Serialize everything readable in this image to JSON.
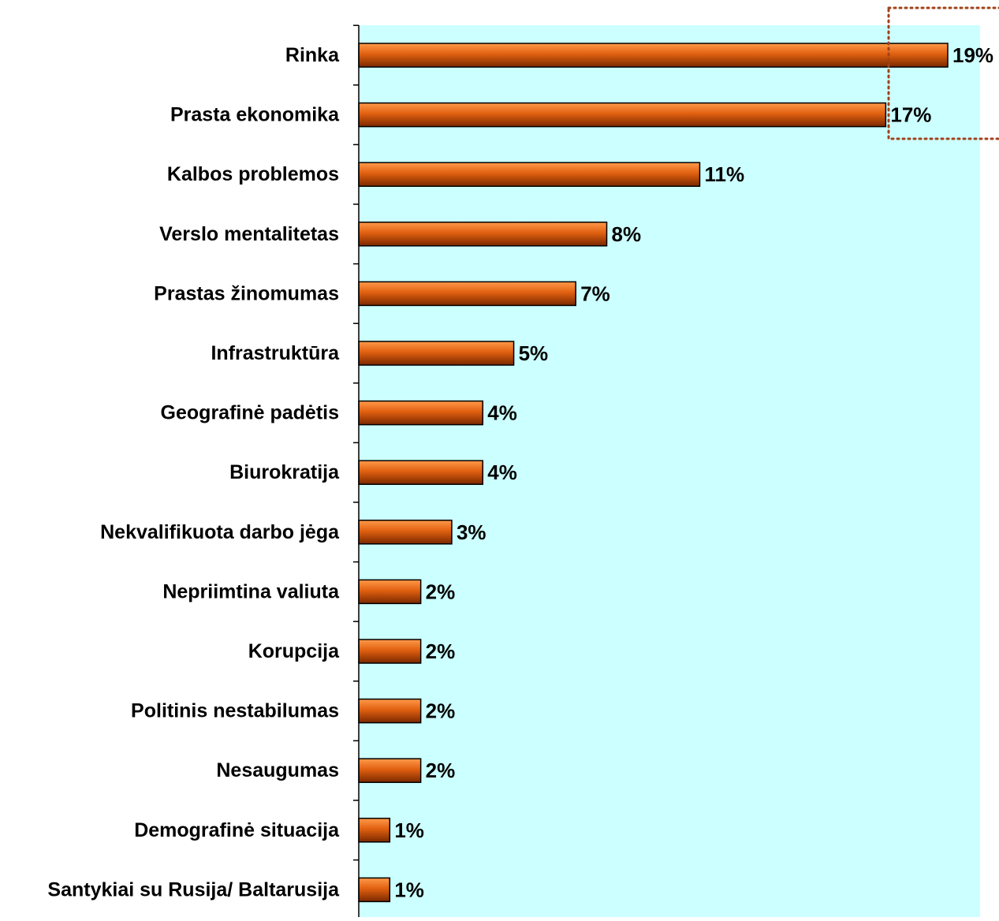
{
  "chart_data": {
    "type": "bar",
    "orientation": "horizontal",
    "title": "",
    "xlabel": "",
    "ylabel": "",
    "xlim": [
      0,
      20
    ],
    "grid": false,
    "legend": "none",
    "categories": [
      "Rinka",
      "Prasta ekonomika",
      "Kalbos problemos",
      "Verslo mentalitetas",
      "Prastas žinomumas",
      "Infrastruktūra",
      "Geografinė padėtis",
      "Biurokratija",
      "Nekvalifikuota darbo jėga",
      "Nepriimtina valiuta",
      "Korupcija",
      "Politinis nestabilumas",
      "Nesaugumas",
      "Demografinė situacija",
      "Santykiai su Rusija/ Baltarusija"
    ],
    "values": [
      19,
      17,
      11,
      8,
      7,
      5,
      4,
      4,
      3,
      2,
      2,
      2,
      2,
      1,
      1
    ],
    "data_labels": [
      "19%",
      "17%",
      "11%",
      "8%",
      "7%",
      "5%",
      "4%",
      "4%",
      "3%",
      "2%",
      "2%",
      "2%",
      "2%",
      "1%",
      "1%"
    ],
    "highlight": {
      "categories": [
        "Rinka",
        "Prasta ekonomika"
      ],
      "style": "dotted box"
    },
    "colors": {
      "plot_background": "#ccffff",
      "bar_light": "#ff9a4a",
      "bar_mid": "#e06010",
      "bar_dark": "#7a2800",
      "bar_outline": "#000000",
      "highlight_box": "#a0421a"
    }
  }
}
